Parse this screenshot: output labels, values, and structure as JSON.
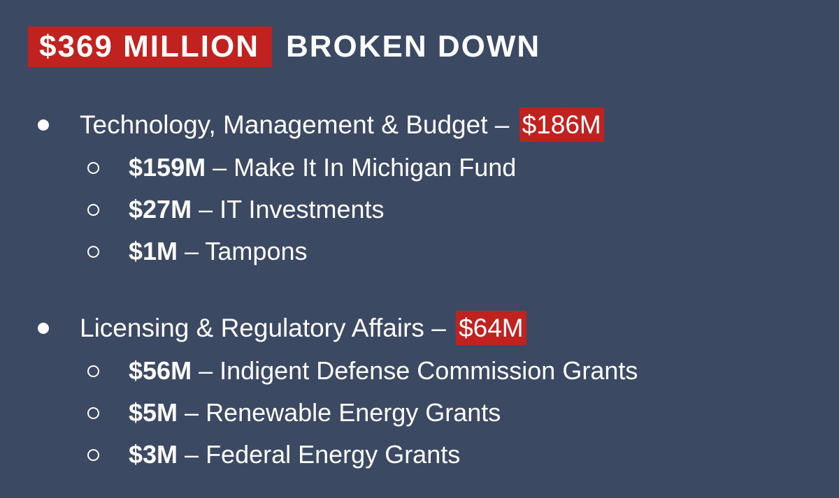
{
  "title": {
    "highlight": "$369 MILLION",
    "rest": "BROKEN DOWN"
  },
  "colors": {
    "background": "#3b4a62",
    "highlight": "#c0221f",
    "text": "#ffffff"
  },
  "sections": [
    {
      "label": "Technology, Management & Budget – ",
      "amount": "$186M",
      "items": [
        {
          "amount": "$159M",
          "sep": " – ",
          "desc": "Make It In Michigan Fund"
        },
        {
          "amount": "$27M",
          "sep": " – ",
          "desc": "IT Investments"
        },
        {
          "amount": "$1M",
          "sep": " – ",
          "desc": "Tampons"
        }
      ]
    },
    {
      "label": "Licensing & Regulatory Affairs – ",
      "amount": "$64M",
      "items": [
        {
          "amount": "$56M",
          "sep": " – ",
          "desc": "Indigent Defense Commission Grants"
        },
        {
          "amount": "$5M",
          "sep": " – ",
          "desc": "Renewable Energy Grants"
        },
        {
          "amount": "$3M",
          "sep": " – ",
          "desc": "Federal Energy Grants"
        }
      ]
    }
  ]
}
